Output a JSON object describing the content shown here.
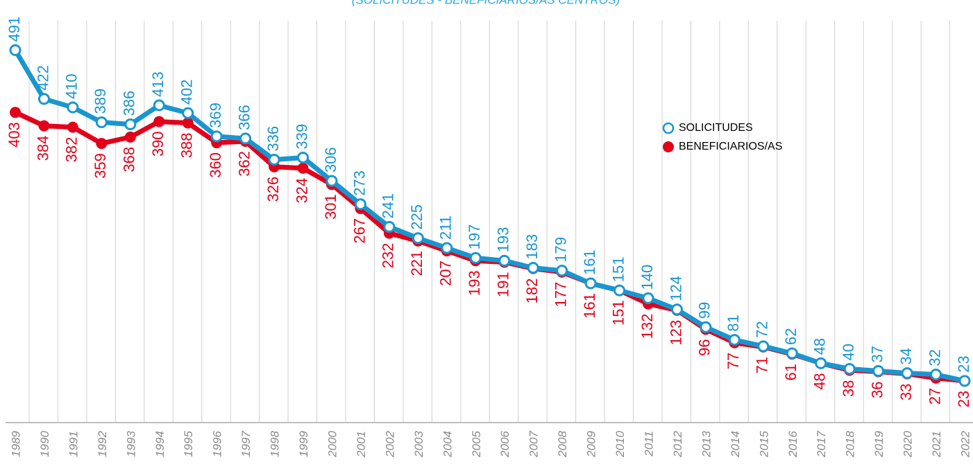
{
  "chart_data": {
    "type": "line",
    "subtitle": "(SOLICITUDES - BENEFICIARIOS/AS CENTROS)",
    "categories": [
      "1989",
      "1990",
      "1991",
      "1992",
      "1993",
      "1994",
      "1995",
      "1996",
      "1997",
      "1998",
      "1999",
      "2000",
      "2001",
      "2002",
      "2003",
      "2004",
      "2005",
      "2006",
      "2007",
      "2008",
      "2009",
      "2010",
      "2011",
      "2012",
      "2013",
      "2014",
      "2015",
      "2016",
      "2017",
      "2018",
      "2019",
      "2020",
      "2021",
      "2022"
    ],
    "series": [
      {
        "name": "SOLICITUDES",
        "color": "#1a96cf",
        "values": [
          491,
          422,
          410,
          389,
          386,
          413,
          402,
          369,
          366,
          336,
          339,
          306,
          273,
          241,
          225,
          211,
          197,
          193,
          183,
          179,
          161,
          151,
          140,
          124,
          99,
          81,
          72,
          62,
          48,
          40,
          37,
          34,
          32,
          23
        ]
      },
      {
        "name": "BENEFICIARIOS/AS",
        "color": "#e2001a",
        "values": [
          403,
          384,
          382,
          359,
          368,
          390,
          388,
          360,
          362,
          326,
          324,
          301,
          267,
          232,
          221,
          207,
          193,
          191,
          182,
          177,
          161,
          151,
          132,
          123,
          96,
          77,
          71,
          61,
          48,
          38,
          36,
          33,
          27,
          23
        ]
      }
    ],
    "ylim": [
      -36,
      562
    ],
    "grid": true
  }
}
